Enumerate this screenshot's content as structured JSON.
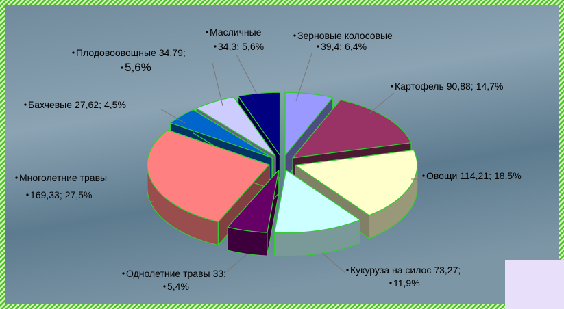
{
  "chart_data": {
    "type": "pie3d",
    "categories": [
      "Зерновые колосовые",
      "Картофель",
      "Овощи",
      "Кукуруза на силос",
      "Однолетние травы",
      "Многолетние травы",
      "Бахчевые",
      "Плодовоовощные",
      "Масличные"
    ],
    "values": [
      39.4,
      90.88,
      114.21,
      73.27,
      33,
      169.33,
      27.62,
      34.79,
      34.3
    ],
    "value_labels": [
      "39,4;",
      "90,88;",
      "114,21;",
      "73,27;",
      "33;",
      "169,33;",
      "27,62;",
      "34,79;",
      "34,3;"
    ],
    "percents": [
      6.4,
      14.7,
      18.5,
      11.9,
      5.4,
      27.5,
      4.5,
      5.6,
      5.6
    ],
    "percent_labels": [
      "6,4%",
      "14,7%",
      "18,5%",
      "11,9%",
      "5,4%",
      "27,5%",
      "4,5%",
      "5,6%",
      "5,6%"
    ],
    "colors": [
      "#9999ff",
      "#993366",
      "#ffffcc",
      "#ccffff",
      "#660066",
      "#ff8080",
      "#0066cc",
      "#ccccff",
      "#000080"
    ]
  }
}
